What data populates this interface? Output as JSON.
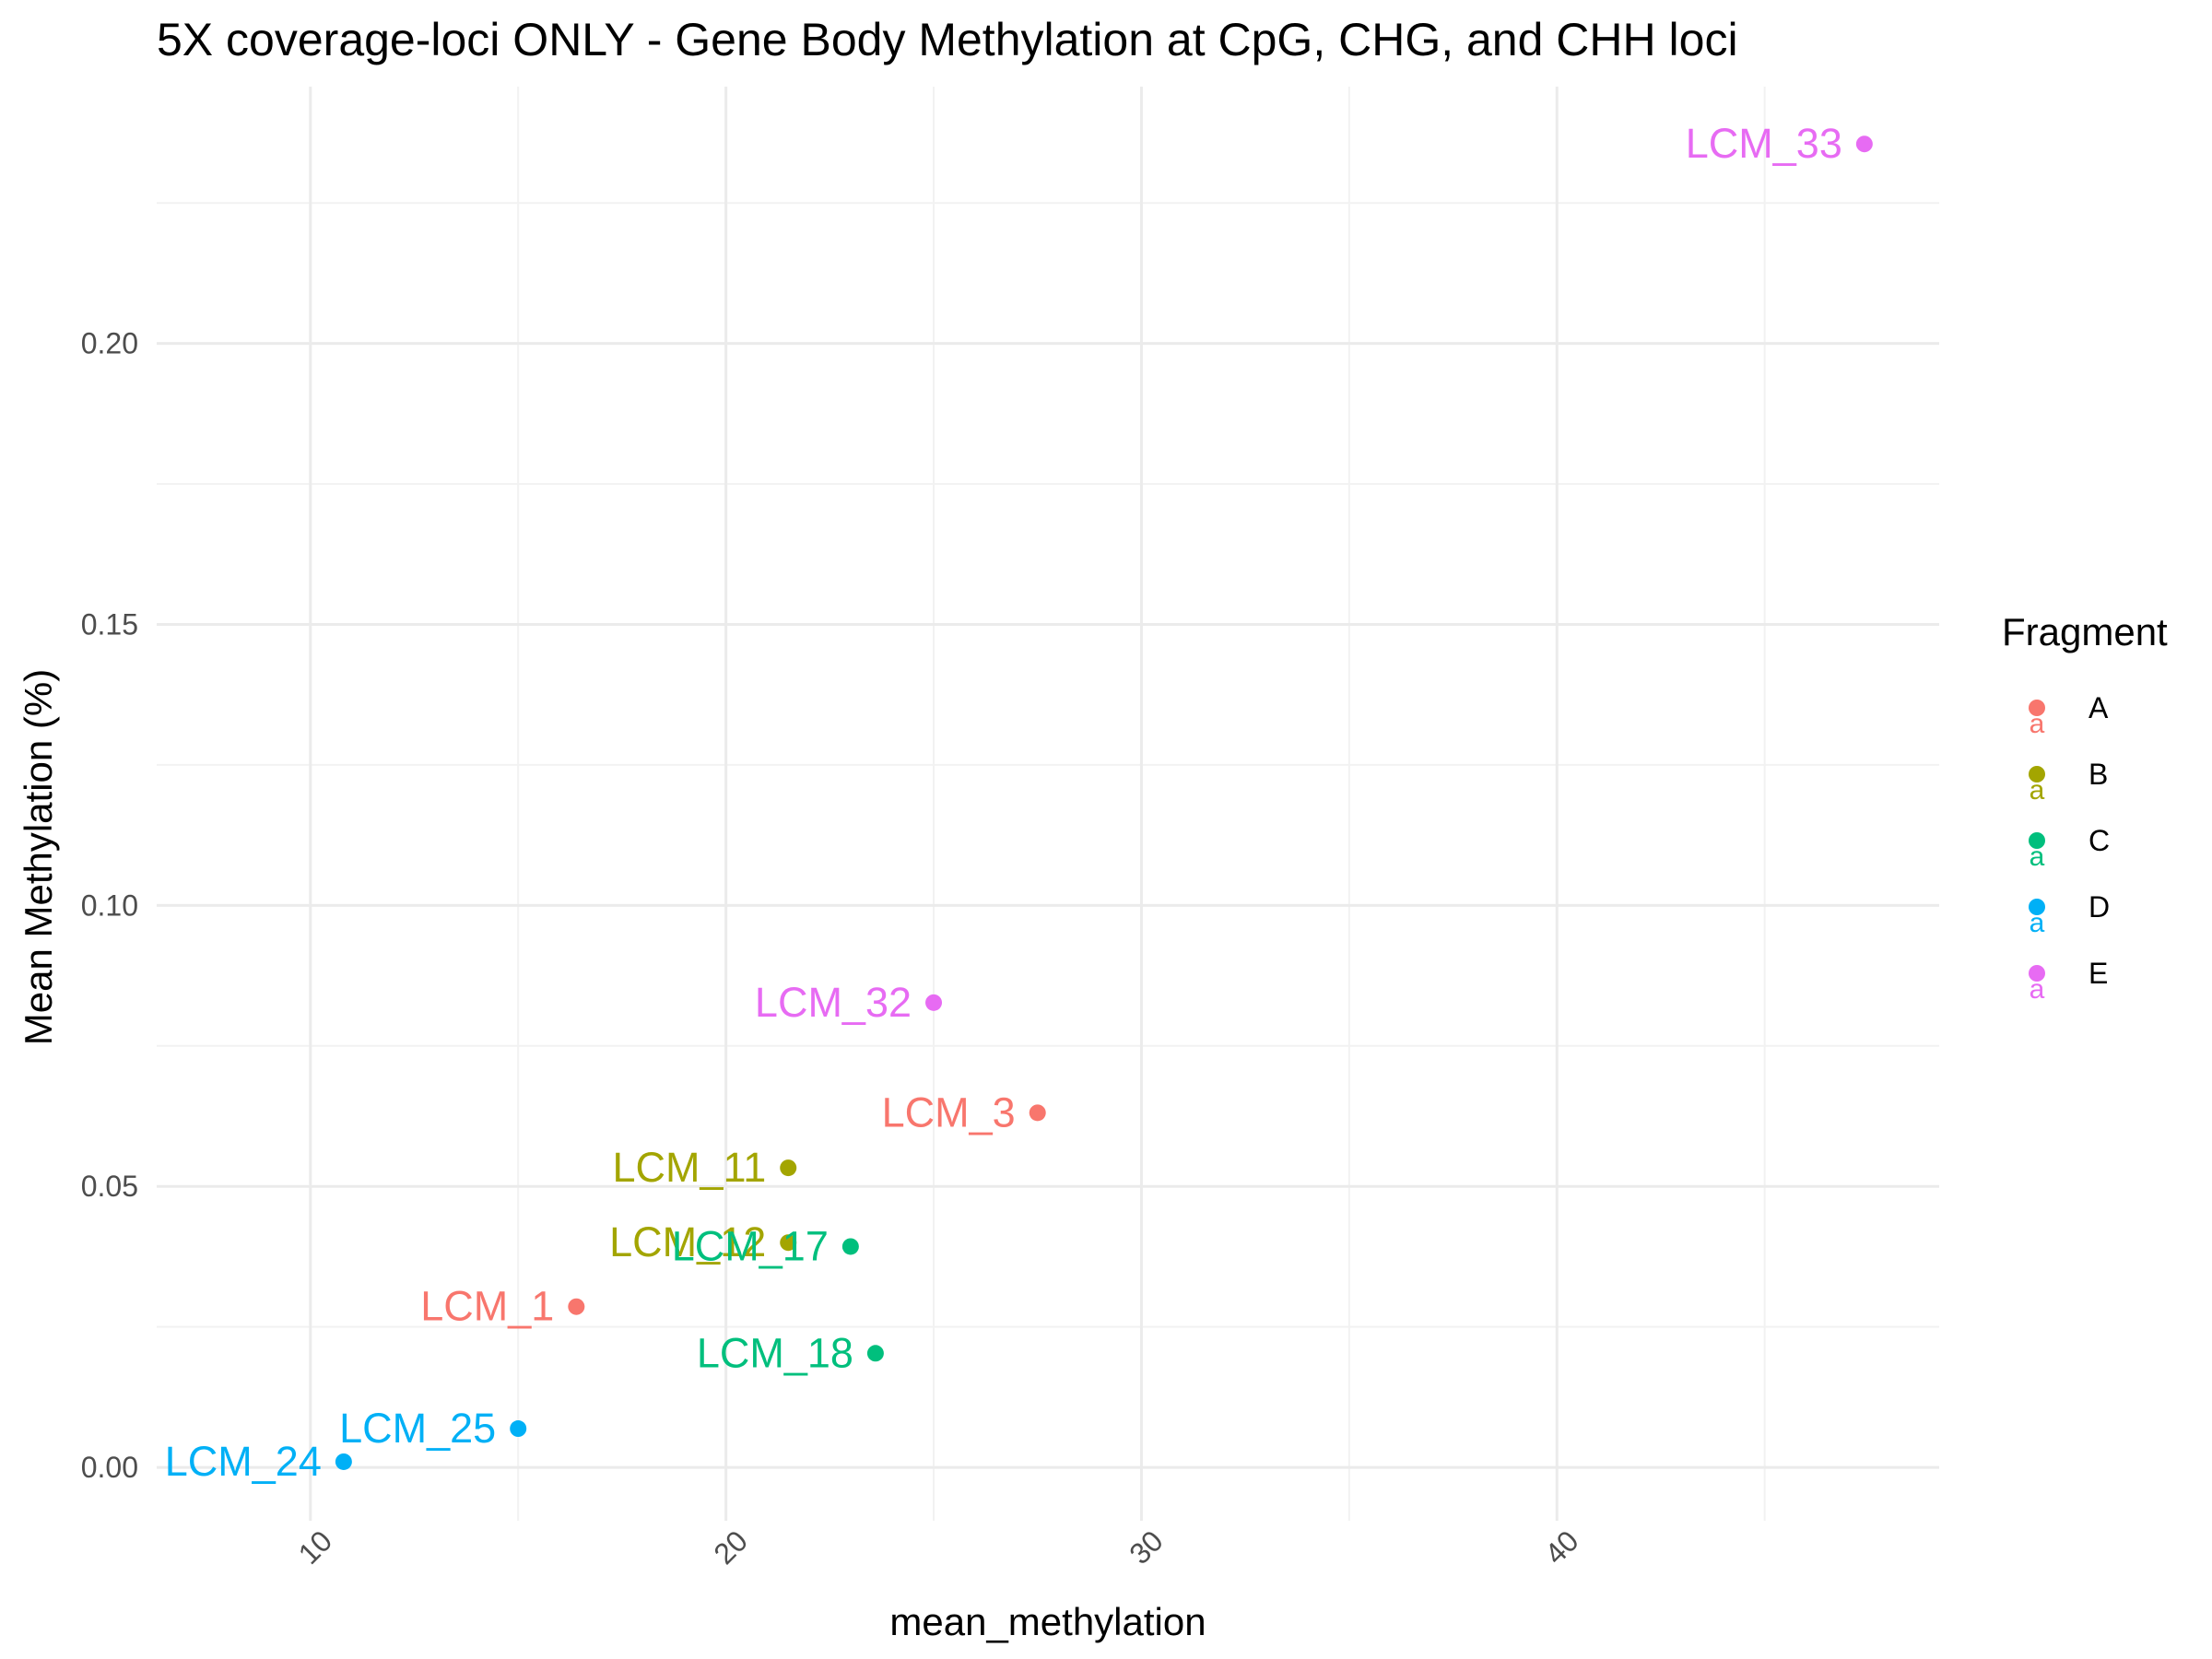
{
  "chart_data": {
    "type": "scatter",
    "title": "5X coverage-loci ONLY - Gene Body Methylation at CpG, CHG, and CHH loci",
    "xlabel": "mean_methylation",
    "ylabel": "Mean Methylation (%)",
    "xlim": [
      6.3,
      49.2
    ],
    "ylim": [
      -0.0095,
      0.2457
    ],
    "x_ticks": [
      10,
      20,
      30,
      40
    ],
    "x_tick_labels": [
      "10",
      "20",
      "30",
      "40"
    ],
    "y_ticks": [
      0.0,
      0.05,
      0.1,
      0.15,
      0.2
    ],
    "y_tick_labels": [
      "0.00",
      "0.05",
      "0.10",
      "0.15",
      "0.20"
    ],
    "grid": true,
    "legend": {
      "title": "Fragment",
      "position": "right",
      "entries": [
        {
          "name": "A",
          "color": "#F8766D"
        },
        {
          "name": "B",
          "color": "#A3A500"
        },
        {
          "name": "C",
          "color": "#00BF7D"
        },
        {
          "name": "D",
          "color": "#00B0F6"
        },
        {
          "name": "E",
          "color": "#E76BF3"
        }
      ]
    },
    "points": [
      {
        "label": "LCM_1",
        "fragment": "A",
        "x": 16.4,
        "y": 0.0286
      },
      {
        "label": "LCM_3",
        "fragment": "A",
        "x": 27.5,
        "y": 0.0631
      },
      {
        "label": "LCM_11",
        "fragment": "B",
        "x": 21.5,
        "y": 0.0533
      },
      {
        "label": "LCM_12",
        "fragment": "B",
        "x": 21.5,
        "y": 0.04
      },
      {
        "label": "LCM_17",
        "fragment": "C",
        "x": 23.0,
        "y": 0.0393
      },
      {
        "label": "LCM_18",
        "fragment": "C",
        "x": 23.6,
        "y": 0.0203
      },
      {
        "label": "LCM_24",
        "fragment": "D",
        "x": 10.8,
        "y": 0.001
      },
      {
        "label": "LCM_25",
        "fragment": "D",
        "x": 15.0,
        "y": 0.0069
      },
      {
        "label": "LCM_32",
        "fragment": "E",
        "x": 25.0,
        "y": 0.0827
      },
      {
        "label": "LCM_33",
        "fragment": "E",
        "x": 47.4,
        "y": 0.2355
      }
    ]
  }
}
